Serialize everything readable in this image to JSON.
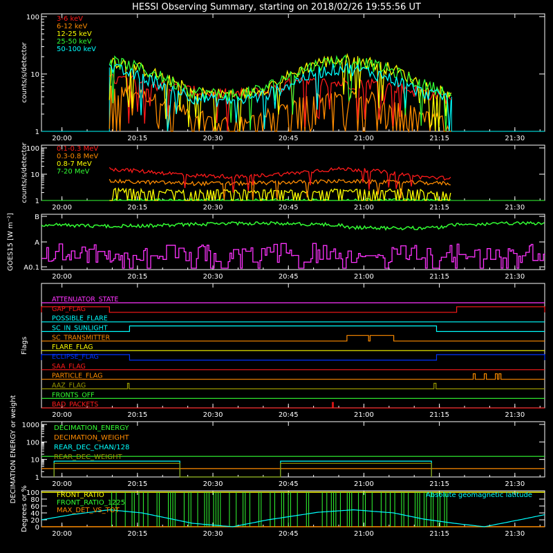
{
  "title": "HESSI Observing Summary, starting on 2018/02/26 19:55:56 UT",
  "x_ticks": [
    "20:00",
    "20:15",
    "20:30",
    "20:45",
    "21:00",
    "21:15",
    "21:30"
  ],
  "x_tick_minutes": [
    4.07,
    19.07,
    34.07,
    49.07,
    64.07,
    79.07,
    94.07
  ],
  "x_range_minutes": [
    0,
    100
  ],
  "colors": {
    "red": "#ff1a1a",
    "orange": "#ff8c00",
    "yellow": "#ffff00",
    "green": "#33ff33",
    "cyan": "#00ffff",
    "magenta": "#ff33ff",
    "blue": "#0033ff",
    "olive": "#999900",
    "white": "#ffffff"
  },
  "chart_data": [
    {
      "type": "line",
      "ylabel": "counts/s/detector",
      "yscale": "log",
      "ylim": [
        1,
        100
      ],
      "y_ticks": [
        "1",
        "10",
        "100"
      ],
      "legend_position": "top-left",
      "series": [
        {
          "name": "3-6 keV",
          "color": "#ff1a1a",
          "x": [
            13.5,
            18,
            25,
            30,
            35,
            40,
            45,
            50,
            55,
            60,
            65,
            70,
            75,
            80,
            81.5
          ],
          "values": [
            8,
            8,
            6,
            5,
            4.5,
            4.5,
            5,
            7,
            7,
            7,
            7,
            6,
            5,
            4,
            4
          ]
        },
        {
          "name": "6-12 keV",
          "color": "#ff8c00",
          "x": [
            13.5,
            18,
            25,
            30,
            35,
            40,
            45,
            50,
            55,
            60,
            65,
            70,
            75,
            80,
            81.5
          ],
          "values": [
            5,
            5,
            3,
            2,
            1.5,
            1.5,
            2,
            3,
            4,
            4,
            4,
            3,
            2,
            1.5,
            1.5
          ]
        },
        {
          "name": "12-25 keV",
          "color": "#ffff00",
          "x": [
            13.5,
            18,
            25,
            30,
            35,
            40,
            45,
            50,
            55,
            60,
            65,
            70,
            75,
            80,
            81.5
          ],
          "values": [
            18,
            14,
            8,
            5,
            4.5,
            4.5,
            6,
            10,
            16,
            18,
            16,
            12,
            7,
            5,
            5
          ]
        },
        {
          "name": "25-50 keV",
          "color": "#33ff33",
          "x": [
            13.5,
            18,
            25,
            30,
            35,
            40,
            45,
            50,
            55,
            60,
            65,
            70,
            75,
            80,
            81.5
          ],
          "values": [
            17,
            14,
            8,
            5,
            4.5,
            4.5,
            6,
            10,
            15,
            18,
            15,
            11,
            7,
            5,
            5
          ]
        },
        {
          "name": "50-100 keV",
          "color": "#00ffff",
          "x": [
            13.5,
            18,
            25,
            30,
            35,
            40,
            45,
            50,
            55,
            60,
            65,
            70,
            75,
            80,
            81.5
          ],
          "values": [
            13,
            10,
            6,
            4,
            3.5,
            3.5,
            4.5,
            7,
            11,
            13,
            11,
            8,
            5,
            4,
            4
          ]
        }
      ]
    },
    {
      "type": "line",
      "ylabel": "counts/s/detector",
      "yscale": "log",
      "ylim": [
        1,
        100
      ],
      "y_ticks": [
        "1",
        "10",
        "100"
      ],
      "legend_position": "top-left",
      "series": [
        {
          "name": "0.1-0.3 MeV",
          "color": "#ff1a1a",
          "x": [
            13.5,
            20,
            30,
            40,
            50,
            55,
            60,
            65,
            70,
            75,
            81.5
          ],
          "values": [
            16,
            13,
            9,
            8,
            11,
            14,
            16,
            14,
            11,
            8,
            7
          ]
        },
        {
          "name": "0.3-0.8 MeV",
          "color": "#ff8c00",
          "x": [
            13.5,
            20,
            30,
            40,
            50,
            60,
            70,
            81.5
          ],
          "values": [
            5.5,
            5,
            4.5,
            4.5,
            5,
            5.5,
            5,
            4.5
          ]
        },
        {
          "name": "0.8-7 MeV",
          "color": "#ffff00",
          "x": [
            13.5,
            20,
            30,
            40,
            50,
            60,
            70,
            81.5
          ],
          "values": [
            2.5,
            2.3,
            2.2,
            2.2,
            2.3,
            2.5,
            2.3,
            2.2
          ]
        },
        {
          "name": "7-20 MeV",
          "color": "#33ff33",
          "x": [
            13.5,
            81.5
          ],
          "values": [
            1,
            1
          ]
        }
      ]
    },
    {
      "type": "line",
      "ylabel": "GOES15 [W m⁻²]",
      "y_ticks": [
        "A0.1",
        "A",
        "B"
      ],
      "series": [
        {
          "color": "#33ff33",
          "x": [
            0,
            20,
            40,
            60,
            80,
            100
          ],
          "values": [
            "B",
            "B",
            "B",
            "B",
            "B",
            "B"
          ]
        },
        {
          "color": "#ff33ff",
          "x": [
            0,
            20,
            40,
            60,
            80,
            100
          ],
          "values": [
            "A0.1-A",
            "A0.1-A",
            "A0.1-A",
            "A0.1-A",
            "A0.1-A",
            "A0.1-A"
          ]
        }
      ]
    },
    {
      "type": "line",
      "ylabel": "Flags",
      "series": [
        {
          "name": "ATTENUATOR_STATE",
          "color": "#ff33ff",
          "on": []
        },
        {
          "name": "GAP_FLAG",
          "color": "#ff1a1a",
          "on": [
            [
              0,
              13.5
            ],
            [
              82.5,
              100
            ]
          ]
        },
        {
          "name": "POSSIBLE_FLARE",
          "color": "#00ffff",
          "on": []
        },
        {
          "name": "SC_IN_SUNLIGHT",
          "color": "#00ffff",
          "on": [
            [
              17.5,
              78.5
            ]
          ]
        },
        {
          "name": "SC_TRANSMITTER",
          "color": "#ff8c00",
          "on": [
            [
              60.7,
              65
            ],
            [
              65.3,
              70
            ]
          ]
        },
        {
          "name": "FLARE_FLAG",
          "color": "#ffff00",
          "on": []
        },
        {
          "name": "ECLIPSE_FLAG",
          "color": "#0033ff",
          "on": [
            [
              0,
              17.5
            ],
            [
              78.5,
              100
            ]
          ]
        },
        {
          "name": "SAA_FLAG",
          "color": "#ff1a1a",
          "on": []
        },
        {
          "name": "PARTICLE_FLAG",
          "color": "#ff8c00",
          "on": [
            [
              85.8,
              86.2
            ],
            [
              88,
              88.4
            ],
            [
              90.2,
              90.6
            ],
            [
              90.9,
              91.3
            ]
          ]
        },
        {
          "name": "AAZ_FLAG",
          "color": "#999900",
          "on": [
            [
              17.1,
              17.4
            ],
            [
              78,
              78.4
            ]
          ]
        },
        {
          "name": "FRONTS_OFF",
          "color": "#33ff33",
          "on": []
        },
        {
          "name": "BAD_PACKETS",
          "color": "#ff1a1a",
          "on": [
            [
              57.8,
              58
            ]
          ]
        }
      ]
    },
    {
      "type": "line",
      "ylabel": "DECIMATION ENERGY or weight",
      "yscale": "log",
      "ylim": [
        1,
        1000
      ],
      "y_ticks": [
        "1",
        "10",
        "100",
        "1000"
      ],
      "series": [
        {
          "name": "DECIMATION_ENERGY",
          "color": "#33ff33",
          "x": [
            0,
            100
          ],
          "values": [
            15,
            15
          ]
        },
        {
          "name": "DECIMATION_WEIGHT",
          "color": "#ff8c00",
          "x": [
            0,
            100
          ],
          "values": [
            3,
            3
          ]
        },
        {
          "name": "REAR_DEC_CHAN/128",
          "color": "#00ffff",
          "x": [
            2.5,
            2.5,
            27.5,
            27.5,
            47.5,
            47.5,
            77.5,
            77.5
          ],
          "values": [
            1,
            8,
            8,
            1,
            1,
            8,
            8,
            1
          ]
        },
        {
          "name": "REAR_DEC_WEIGHT",
          "color": "#999900",
          "x": [
            2.5,
            2.5,
            27.5,
            27.5,
            47.5,
            47.5,
            77.5,
            77.5
          ],
          "values": [
            1,
            6,
            6,
            1,
            1,
            6,
            6,
            1
          ]
        }
      ]
    },
    {
      "type": "line",
      "ylabel": "Degrees or %",
      "ylim": [
        0,
        100
      ],
      "y_ticks": [
        "0",
        "20",
        "40",
        "60",
        "80",
        "100"
      ],
      "series": [
        {
          "name": "FRONT_RATIO",
          "color": "#ffff00",
          "x": [
            0,
            100
          ],
          "values": [
            100,
            100
          ]
        },
        {
          "name": "FRONT_RATIO_1225",
          "color": "#33ff33",
          "x": [
            13.5,
            81.5
          ],
          "values": [
            100,
            100
          ]
        },
        {
          "name": "MAX_DET_VS_TOT",
          "color": "#ff8c00",
          "x": [
            0,
            100
          ],
          "values": [
            0,
            0
          ]
        },
        {
          "name": "Absolute geomagnetic latitude",
          "color": "#00ffff",
          "x": [
            0,
            6,
            13.5,
            20,
            25,
            30,
            38,
            45,
            55,
            62,
            70,
            76,
            82,
            88,
            95,
            100
          ],
          "values": [
            20,
            35,
            49,
            40,
            25,
            10,
            0,
            20,
            42,
            49,
            40,
            22,
            10,
            0,
            20,
            35
          ]
        }
      ]
    }
  ]
}
